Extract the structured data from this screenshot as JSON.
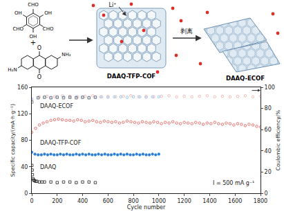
{
  "diagram": {
    "monomer1": {
      "substituents": [
        "CHO",
        "OH",
        "CHO",
        "OH",
        "CHO",
        "OH"
      ]
    },
    "plus": "+",
    "monomer2": {
      "amines": [
        "H₂N",
        "NH₂"
      ],
      "carbonyls": [
        "O",
        "O"
      ]
    },
    "ion": "Li⁺",
    "step": "剥离",
    "cof": "DAAQ-TFP-COF",
    "ecof": "DAAQ-ECOF"
  },
  "chart_data": {
    "type": "scatter",
    "xlabel": "Cycle number",
    "ylabel": "Specific capacity/(mA·h·g⁻¹)",
    "y2label": "Coulombic efficiency/%",
    "xlim": [
      0,
      1800
    ],
    "xticks": [
      0,
      200,
      400,
      600,
      800,
      1000,
      1200,
      1400,
      1600,
      1800
    ],
    "ylim": [
      0,
      160
    ],
    "yticks": [
      0,
      40,
      80,
      120,
      160
    ],
    "y2lim": [
      0,
      100
    ],
    "y2ticks": [
      0,
      20,
      40,
      60,
      80,
      100
    ],
    "grid": false,
    "annotations": [
      "DAAQ-ECOF",
      "DAAQ-TFP-COF",
      "DAAQ",
      "I = 500 mA g⁻¹"
    ],
    "series": [
      {
        "name": "DAAQ-ECOF",
        "color": "#e8504a",
        "marker": "circle-open",
        "x": [
          0,
          30,
          60,
          90,
          120,
          150,
          180,
          210,
          240,
          270,
          300,
          330,
          360,
          390,
          420,
          450,
          480,
          510,
          540,
          570,
          600,
          630,
          660,
          690,
          720,
          750,
          780,
          810,
          840,
          870,
          900,
          930,
          960,
          990,
          1020,
          1050,
          1080,
          1110,
          1140,
          1170,
          1200,
          1230,
          1260,
          1290,
          1320,
          1350,
          1380,
          1410,
          1440,
          1470,
          1500,
          1530,
          1560,
          1590,
          1620,
          1650,
          1680,
          1710,
          1740,
          1770,
          1800
        ],
        "values": [
          92,
          98,
          103,
          106,
          108,
          110,
          111,
          112,
          111,
          110,
          110,
          109,
          111,
          110,
          108,
          109,
          110,
          108,
          107,
          109,
          108,
          107,
          108,
          106,
          107,
          109,
          108,
          107,
          106,
          108,
          107,
          106,
          108,
          107,
          105,
          107,
          106,
          108,
          106,
          105,
          107,
          106,
          105,
          107,
          106,
          104,
          106,
          105,
          107,
          105,
          104,
          106,
          105,
          103,
          105,
          104,
          102,
          104,
          103,
          101,
          100
        ]
      },
      {
        "name": "DAAQ-TFP-COF",
        "color": "#2a7fd4",
        "marker": "circle",
        "x": [
          0,
          25,
          50,
          75,
          100,
          125,
          150,
          175,
          200,
          225,
          250,
          275,
          300,
          325,
          350,
          375,
          400,
          425,
          450,
          475,
          500,
          525,
          550,
          575,
          600,
          625,
          650,
          675,
          700,
          725,
          750,
          775,
          800,
          825,
          850,
          875,
          900,
          925,
          950,
          975,
          1000
        ],
        "values": [
          62,
          59,
          58,
          58,
          59,
          58,
          59,
          58,
          58,
          59,
          58,
          59,
          58,
          58,
          59,
          58,
          59,
          58,
          59,
          58,
          58,
          59,
          58,
          59,
          58,
          58,
          59,
          58,
          59,
          58,
          59,
          58,
          58,
          59,
          58,
          59,
          58,
          58,
          59,
          58,
          59
        ]
      },
      {
        "name": "DAAQ",
        "color": "#222222",
        "marker": "square-open",
        "x": [
          1,
          3,
          5,
          10,
          15,
          20,
          30,
          40,
          60,
          80,
          100,
          150,
          200,
          250,
          300,
          350,
          400,
          450,
          500
        ],
        "values": [
          42,
          35,
          28,
          22,
          20,
          19,
          18,
          18,
          17,
          17,
          17,
          17,
          16,
          17,
          17,
          16,
          17,
          17,
          16
        ]
      },
      {
        "name": "DAAQ-ECOF",
        "color": "#f2a9a6",
        "marker": "circle-open",
        "axis": "y2",
        "x": [
          0,
          60,
          120,
          180,
          240,
          300,
          360,
          420,
          480,
          540,
          600,
          660,
          720,
          780,
          840,
          900,
          960,
          1020,
          1080,
          1140,
          1200,
          1260,
          1320,
          1380,
          1440,
          1500,
          1560,
          1620,
          1680,
          1740,
          1800
        ],
        "values": [
          88,
          91,
          91.5,
          91,
          92,
          91.5,
          91,
          91.5,
          92,
          91,
          91.5,
          91,
          91.5,
          92,
          91,
          91.5,
          91,
          91.5,
          92,
          91,
          91.5,
          91,
          91.5,
          92,
          91,
          91.5,
          91,
          91.5,
          92,
          91,
          91.5
        ]
      },
      {
        "name": "DAAQ-TFP-COF",
        "color": "#7fb8e8",
        "marker": "circle-open",
        "axis": "y2",
        "x": [
          0,
          50,
          100,
          150,
          200,
          250,
          300,
          350,
          400,
          450,
          500,
          550,
          600,
          650,
          700,
          750,
          800,
          850,
          900,
          950,
          1000
        ],
        "values": [
          89,
          90.5,
          91,
          90.5,
          91,
          91,
          90.5,
          91,
          91,
          90.5,
          91,
          91,
          90.5,
          91,
          91,
          90.5,
          91,
          91,
          90.5,
          91,
          91
        ]
      },
      {
        "name": "DAAQ",
        "color": "#666666",
        "marker": "square-open",
        "axis": "y2",
        "x": [
          1,
          50,
          100,
          150,
          200,
          250,
          300,
          350,
          400,
          450,
          500
        ],
        "values": [
          86,
          90,
          90.5,
          90,
          90.5,
          90,
          90.5,
          90,
          90.5,
          90,
          90.5
        ]
      }
    ]
  }
}
